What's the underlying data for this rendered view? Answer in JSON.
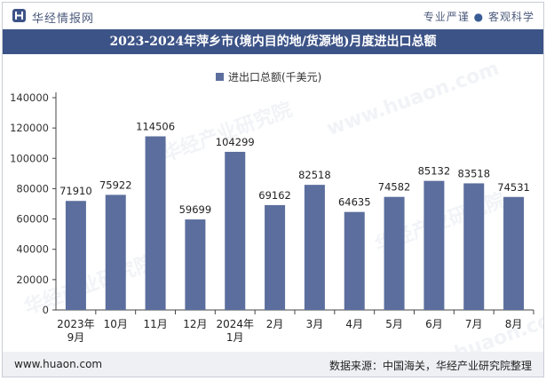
{
  "header": {
    "brand": "华经情报网",
    "slogan_left": "专业严谨",
    "slogan_sep": "●",
    "slogan_right": "客观科学"
  },
  "title": "2023-2024年萍乡市(境内目的地/货源地)月度进出口总额",
  "footer": {
    "site": "www.huaon.com",
    "source": "数据来源：中国海关，华经产业研究院整理"
  },
  "watermarks": [
    "华经产业研究院",
    "www.huaon.com",
    "华经产业研究院",
    "华经产业研究院",
    "www.huaon.com"
  ],
  "colors": {
    "bar": "#5b6e9d",
    "title_bg": "#3c5387",
    "axis": "#444444"
  },
  "chart_data": {
    "type": "bar",
    "title": "2023-2024年萍乡市(境内目的地/货源地)月度进出口总额",
    "legend": "进出口总额(千美元)",
    "legend_position": "top-center",
    "categories": [
      [
        "2023年",
        "9月"
      ],
      [
        "10月"
      ],
      [
        "11月"
      ],
      [
        "12月"
      ],
      [
        "2024年",
        "1月"
      ],
      [
        "2月"
      ],
      [
        "3月"
      ],
      [
        "4月"
      ],
      [
        "5月"
      ],
      [
        "6月"
      ],
      [
        "7月"
      ],
      [
        "8月"
      ]
    ],
    "series": [
      {
        "name": "进出口总额(千美元)",
        "values": [
          71910,
          75922,
          114506,
          59699,
          104299,
          69162,
          82518,
          64635,
          74582,
          85132,
          83518,
          74531
        ]
      }
    ],
    "yticks": [
      0,
      20000,
      40000,
      60000,
      80000,
      100000,
      120000,
      140000
    ],
    "ylim": [
      0,
      140000
    ],
    "xlabel": "",
    "ylabel": "",
    "grid": false
  }
}
